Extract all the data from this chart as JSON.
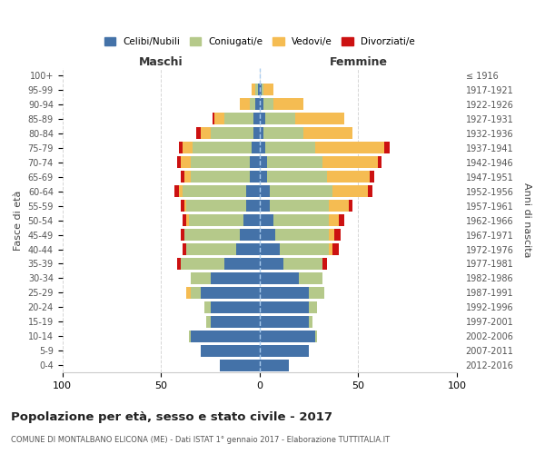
{
  "age_groups": [
    "0-4",
    "5-9",
    "10-14",
    "15-19",
    "20-24",
    "25-29",
    "30-34",
    "35-39",
    "40-44",
    "45-49",
    "50-54",
    "55-59",
    "60-64",
    "65-69",
    "70-74",
    "75-79",
    "80-84",
    "85-89",
    "90-94",
    "95-99",
    "100+"
  ],
  "birth_years": [
    "2012-2016",
    "2007-2011",
    "2002-2006",
    "1997-2001",
    "1992-1996",
    "1987-1991",
    "1982-1986",
    "1977-1981",
    "1972-1976",
    "1967-1971",
    "1962-1966",
    "1957-1961",
    "1952-1956",
    "1947-1951",
    "1942-1946",
    "1937-1941",
    "1932-1936",
    "1927-1931",
    "1922-1926",
    "1917-1921",
    "≤ 1916"
  ],
  "colors": {
    "celibi": "#4472a8",
    "coniugati": "#b5c98a",
    "vedovi": "#f5bc52",
    "divorziati": "#cc1111"
  },
  "maschi": {
    "celibi": [
      20,
      30,
      35,
      25,
      25,
      30,
      25,
      18,
      12,
      10,
      8,
      7,
      7,
      5,
      5,
      4,
      3,
      3,
      2,
      1,
      0
    ],
    "coniugati": [
      0,
      0,
      1,
      2,
      3,
      5,
      10,
      22,
      25,
      28,
      28,
      30,
      32,
      30,
      30,
      30,
      22,
      15,
      3,
      1,
      0
    ],
    "vedovi": [
      0,
      0,
      0,
      0,
      0,
      2,
      0,
      0,
      0,
      0,
      1,
      1,
      2,
      3,
      5,
      5,
      5,
      5,
      5,
      2,
      0
    ],
    "divorziati": [
      0,
      0,
      0,
      0,
      0,
      0,
      0,
      2,
      2,
      2,
      2,
      2,
      2,
      2,
      2,
      2,
      2,
      1,
      0,
      0,
      0
    ]
  },
  "femmine": {
    "celibi": [
      15,
      25,
      28,
      25,
      25,
      25,
      20,
      12,
      10,
      8,
      7,
      5,
      5,
      4,
      4,
      3,
      2,
      3,
      2,
      1,
      0
    ],
    "coniugati": [
      0,
      0,
      1,
      2,
      4,
      8,
      12,
      20,
      25,
      27,
      28,
      30,
      32,
      30,
      28,
      25,
      20,
      15,
      5,
      1,
      0
    ],
    "vedovi": [
      0,
      0,
      0,
      0,
      0,
      0,
      0,
      0,
      2,
      3,
      5,
      10,
      18,
      22,
      28,
      35,
      25,
      25,
      15,
      5,
      0
    ],
    "divorziati": [
      0,
      0,
      0,
      0,
      0,
      0,
      0,
      2,
      3,
      3,
      3,
      2,
      2,
      2,
      2,
      3,
      0,
      0,
      0,
      0,
      0
    ]
  },
  "xlim": 100,
  "title": "Popolazione per età, sesso e stato civile - 2017",
  "subtitle": "COMUNE DI MONTALBANO ELICONA (ME) - Dati ISTAT 1° gennaio 2017 - Elaborazione TUTTITALIA.IT",
  "ylabel_left": "Fasce di età",
  "ylabel_right": "Anni di nascita",
  "xlabel_left": "Maschi",
  "xlabel_right": "Femmine"
}
